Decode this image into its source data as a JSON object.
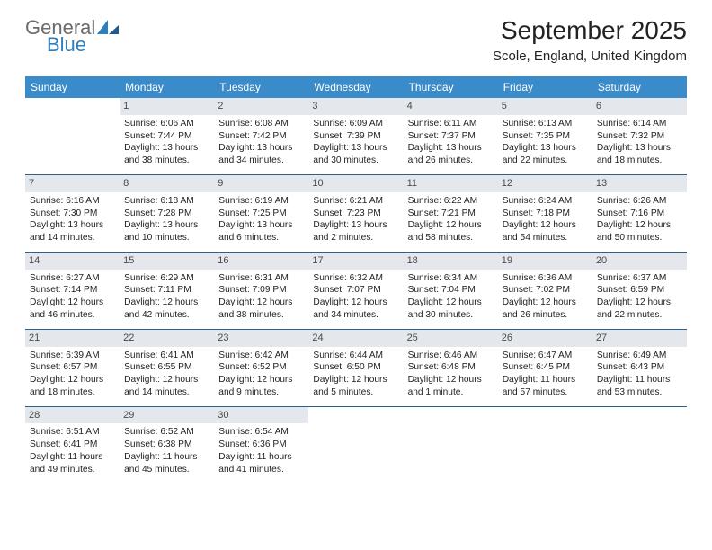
{
  "logo": {
    "general": "General",
    "blue": "Blue"
  },
  "header": {
    "month_title": "September 2025",
    "location": "Scole, England, United Kingdom"
  },
  "colors": {
    "header_bg": "#3a8bc9",
    "daynum_bg": "#e4e8ec",
    "week_border": "#2a5f8f",
    "text": "#222222",
    "logo_gray": "#6b6b6b",
    "logo_blue": "#2f7fbf"
  },
  "days_of_week": [
    "Sunday",
    "Monday",
    "Tuesday",
    "Wednesday",
    "Thursday",
    "Friday",
    "Saturday"
  ],
  "weeks": [
    [
      null,
      {
        "n": "1",
        "sunrise": "Sunrise: 6:06 AM",
        "sunset": "Sunset: 7:44 PM",
        "daylight": "Daylight: 13 hours and 38 minutes."
      },
      {
        "n": "2",
        "sunrise": "Sunrise: 6:08 AM",
        "sunset": "Sunset: 7:42 PM",
        "daylight": "Daylight: 13 hours and 34 minutes."
      },
      {
        "n": "3",
        "sunrise": "Sunrise: 6:09 AM",
        "sunset": "Sunset: 7:39 PM",
        "daylight": "Daylight: 13 hours and 30 minutes."
      },
      {
        "n": "4",
        "sunrise": "Sunrise: 6:11 AM",
        "sunset": "Sunset: 7:37 PM",
        "daylight": "Daylight: 13 hours and 26 minutes."
      },
      {
        "n": "5",
        "sunrise": "Sunrise: 6:13 AM",
        "sunset": "Sunset: 7:35 PM",
        "daylight": "Daylight: 13 hours and 22 minutes."
      },
      {
        "n": "6",
        "sunrise": "Sunrise: 6:14 AM",
        "sunset": "Sunset: 7:32 PM",
        "daylight": "Daylight: 13 hours and 18 minutes."
      }
    ],
    [
      {
        "n": "7",
        "sunrise": "Sunrise: 6:16 AM",
        "sunset": "Sunset: 7:30 PM",
        "daylight": "Daylight: 13 hours and 14 minutes."
      },
      {
        "n": "8",
        "sunrise": "Sunrise: 6:18 AM",
        "sunset": "Sunset: 7:28 PM",
        "daylight": "Daylight: 13 hours and 10 minutes."
      },
      {
        "n": "9",
        "sunrise": "Sunrise: 6:19 AM",
        "sunset": "Sunset: 7:25 PM",
        "daylight": "Daylight: 13 hours and 6 minutes."
      },
      {
        "n": "10",
        "sunrise": "Sunrise: 6:21 AM",
        "sunset": "Sunset: 7:23 PM",
        "daylight": "Daylight: 13 hours and 2 minutes."
      },
      {
        "n": "11",
        "sunrise": "Sunrise: 6:22 AM",
        "sunset": "Sunset: 7:21 PM",
        "daylight": "Daylight: 12 hours and 58 minutes."
      },
      {
        "n": "12",
        "sunrise": "Sunrise: 6:24 AM",
        "sunset": "Sunset: 7:18 PM",
        "daylight": "Daylight: 12 hours and 54 minutes."
      },
      {
        "n": "13",
        "sunrise": "Sunrise: 6:26 AM",
        "sunset": "Sunset: 7:16 PM",
        "daylight": "Daylight: 12 hours and 50 minutes."
      }
    ],
    [
      {
        "n": "14",
        "sunrise": "Sunrise: 6:27 AM",
        "sunset": "Sunset: 7:14 PM",
        "daylight": "Daylight: 12 hours and 46 minutes."
      },
      {
        "n": "15",
        "sunrise": "Sunrise: 6:29 AM",
        "sunset": "Sunset: 7:11 PM",
        "daylight": "Daylight: 12 hours and 42 minutes."
      },
      {
        "n": "16",
        "sunrise": "Sunrise: 6:31 AM",
        "sunset": "Sunset: 7:09 PM",
        "daylight": "Daylight: 12 hours and 38 minutes."
      },
      {
        "n": "17",
        "sunrise": "Sunrise: 6:32 AM",
        "sunset": "Sunset: 7:07 PM",
        "daylight": "Daylight: 12 hours and 34 minutes."
      },
      {
        "n": "18",
        "sunrise": "Sunrise: 6:34 AM",
        "sunset": "Sunset: 7:04 PM",
        "daylight": "Daylight: 12 hours and 30 minutes."
      },
      {
        "n": "19",
        "sunrise": "Sunrise: 6:36 AM",
        "sunset": "Sunset: 7:02 PM",
        "daylight": "Daylight: 12 hours and 26 minutes."
      },
      {
        "n": "20",
        "sunrise": "Sunrise: 6:37 AM",
        "sunset": "Sunset: 6:59 PM",
        "daylight": "Daylight: 12 hours and 22 minutes."
      }
    ],
    [
      {
        "n": "21",
        "sunrise": "Sunrise: 6:39 AM",
        "sunset": "Sunset: 6:57 PM",
        "daylight": "Daylight: 12 hours and 18 minutes."
      },
      {
        "n": "22",
        "sunrise": "Sunrise: 6:41 AM",
        "sunset": "Sunset: 6:55 PM",
        "daylight": "Daylight: 12 hours and 14 minutes."
      },
      {
        "n": "23",
        "sunrise": "Sunrise: 6:42 AM",
        "sunset": "Sunset: 6:52 PM",
        "daylight": "Daylight: 12 hours and 9 minutes."
      },
      {
        "n": "24",
        "sunrise": "Sunrise: 6:44 AM",
        "sunset": "Sunset: 6:50 PM",
        "daylight": "Daylight: 12 hours and 5 minutes."
      },
      {
        "n": "25",
        "sunrise": "Sunrise: 6:46 AM",
        "sunset": "Sunset: 6:48 PM",
        "daylight": "Daylight: 12 hours and 1 minute."
      },
      {
        "n": "26",
        "sunrise": "Sunrise: 6:47 AM",
        "sunset": "Sunset: 6:45 PM",
        "daylight": "Daylight: 11 hours and 57 minutes."
      },
      {
        "n": "27",
        "sunrise": "Sunrise: 6:49 AM",
        "sunset": "Sunset: 6:43 PM",
        "daylight": "Daylight: 11 hours and 53 minutes."
      }
    ],
    [
      {
        "n": "28",
        "sunrise": "Sunrise: 6:51 AM",
        "sunset": "Sunset: 6:41 PM",
        "daylight": "Daylight: 11 hours and 49 minutes."
      },
      {
        "n": "29",
        "sunrise": "Sunrise: 6:52 AM",
        "sunset": "Sunset: 6:38 PM",
        "daylight": "Daylight: 11 hours and 45 minutes."
      },
      {
        "n": "30",
        "sunrise": "Sunrise: 6:54 AM",
        "sunset": "Sunset: 6:36 PM",
        "daylight": "Daylight: 11 hours and 41 minutes."
      },
      null,
      null,
      null,
      null
    ]
  ]
}
